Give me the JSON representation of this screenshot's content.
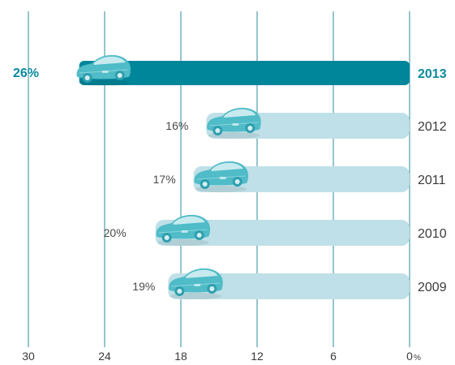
{
  "chart_data": {
    "type": "bar",
    "orientation": "horizontal",
    "x_direction": "reversed",
    "categories": [
      "2013",
      "2012",
      "2011",
      "2010",
      "2009"
    ],
    "values": [
      26,
      16,
      17,
      20,
      19
    ],
    "value_labels": [
      "26%",
      "16%",
      "17%",
      "20%",
      "19%"
    ],
    "highlight_category": "2013",
    "xlim": [
      0,
      30
    ],
    "x_ticks": [
      "30",
      "24",
      "18",
      "12",
      "6",
      "0"
    ],
    "x_unit": "%",
    "grid": "vertical",
    "bar_marker_icon": "car-icon",
    "colors": {
      "highlight_bar": "#00869a",
      "bar": "#bfe0e8",
      "gridline": "#2a8c9c",
      "highlight_text": "#0a8aa0",
      "text": "#3a3a3a",
      "car_body": "#4fbcc8",
      "car_window": "#d4eef2"
    }
  }
}
